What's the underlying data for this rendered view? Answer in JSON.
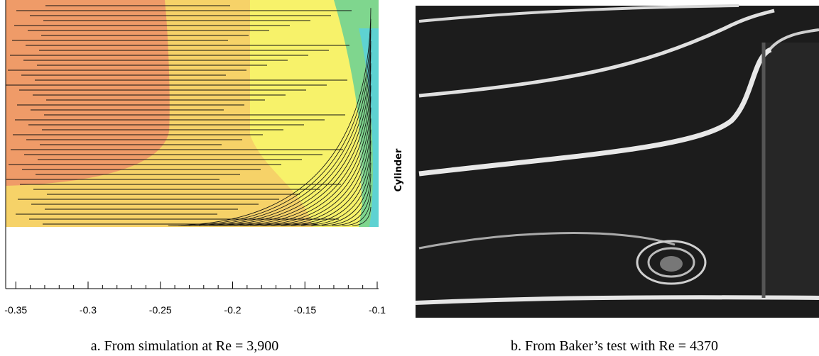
{
  "figure": {
    "panels": [
      {
        "side_label": "Cylinder",
        "xlim": [
          -0.357,
          -0.1
        ],
        "xticks": [
          -0.35,
          -0.3,
          -0.25,
          -0.2,
          -0.15,
          -0.1
        ],
        "caption": "a. From simulation at Re = 3,900"
      },
      {
        "caption": "b. From Baker’s test with Re = 4370"
      }
    ]
  }
}
